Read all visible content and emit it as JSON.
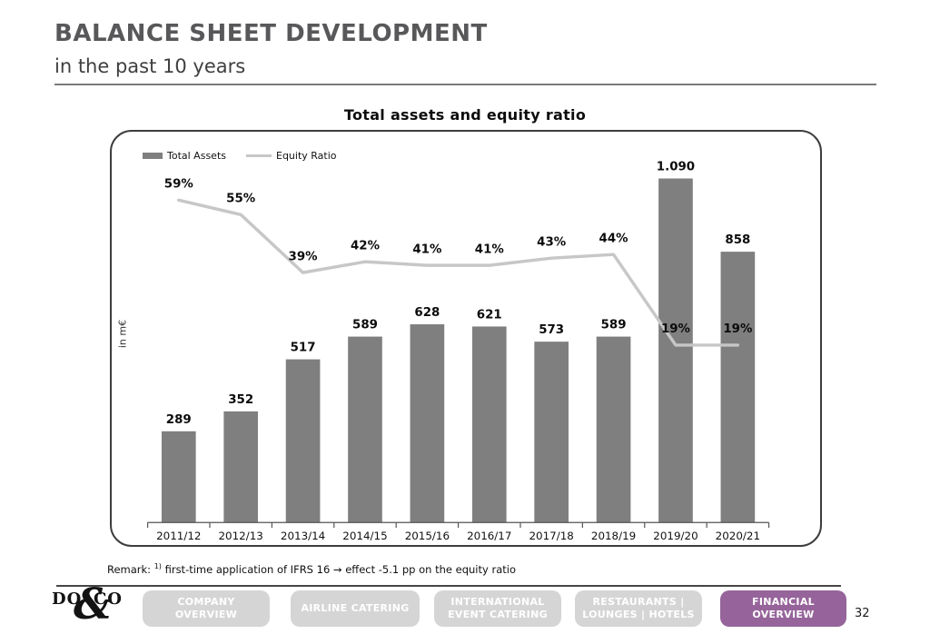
{
  "header": {
    "title": "BALANCE SHEET DEVELOPMENT",
    "subtitle": "in the past 10 years"
  },
  "chart_data": {
    "type": "bar+line",
    "title": "Total assets and equity ratio",
    "ylabel": "in m€",
    "grid": false,
    "legend_position": "top-left",
    "categories": [
      "2011/12",
      "2012/13",
      "2013/14",
      "2014/15",
      "2015/16",
      "2016/17",
      "2017/18",
      "2018/19",
      "2019/20",
      "2020/21"
    ],
    "series": [
      {
        "name": "Total Assets",
        "type": "bar",
        "unit": "m€",
        "color": "#7f7f7f",
        "values": [
          289,
          352,
          517,
          589,
          628,
          621,
          573,
          589,
          1090,
          858
        ],
        "labels": [
          "289",
          "352",
          "517",
          "589",
          "628",
          "621",
          "573",
          "589",
          "1.090",
          "858"
        ]
      },
      {
        "name": "Equity Ratio",
        "type": "line",
        "unit": "%",
        "color": "#c7c7c7",
        "values": [
          59,
          55,
          39,
          42,
          41,
          41,
          43,
          44,
          19,
          19
        ],
        "labels": [
          "59%",
          "55%",
          "39%",
          "42%",
          "41%",
          "41%",
          "43%",
          "44%",
          "19%",
          "19%"
        ]
      }
    ]
  },
  "remark": {
    "label": "Remark:",
    "sup": "1)",
    "text": "first-time application of IFRS 16 → effect -5.1 pp on the equity ratio"
  },
  "footer": {
    "logo": {
      "do": "DO",
      "amp": "&",
      "co": "CO"
    },
    "nav": [
      {
        "label": "COMPANY OVERVIEW",
        "active": false
      },
      {
        "label": "AIRLINE CATERING",
        "active": false
      },
      {
        "label": "INTERNATIONAL EVENT CATERING",
        "active": false
      },
      {
        "label": "RESTAURANTS | LOUNGES | HOTELS",
        "active": false
      },
      {
        "label": "FINANCIAL OVERVIEW",
        "active": true
      }
    ],
    "active_color": "#96649b",
    "inactive_color": "#d5d5d5",
    "page_number": "32"
  }
}
